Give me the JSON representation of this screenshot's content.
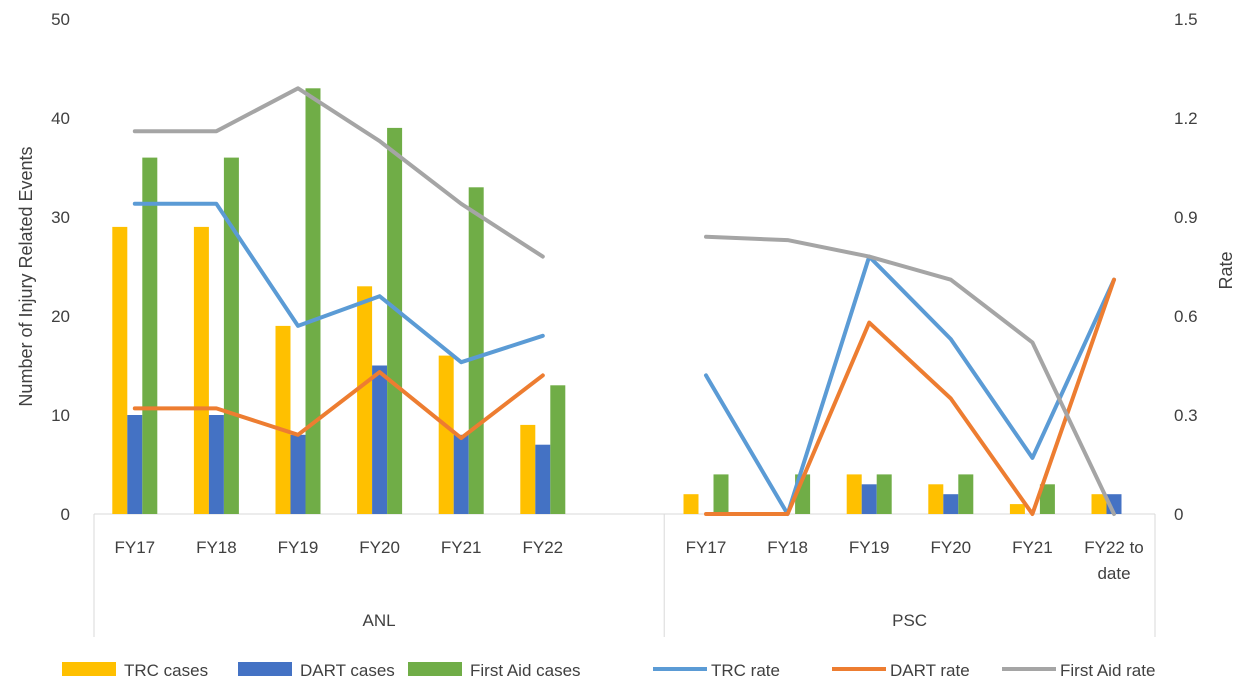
{
  "chart_data": {
    "type": "bar",
    "subtype": "combo bar + line, dual axis",
    "groups": [
      {
        "label": "ANL",
        "categories": [
          "FY17",
          "FY18",
          "FY19",
          "FY20",
          "FY21",
          "FY22"
        ]
      },
      {
        "label": "PSC",
        "categories": [
          "FY17",
          "FY18",
          "FY19",
          "FY20",
          "FY21",
          "FY22 to date"
        ]
      }
    ],
    "bar_series": [
      {
        "name": "TRC cases",
        "color": "#FFC000",
        "values": [
          [
            29,
            29,
            19,
            23,
            16,
            9
          ],
          [
            2,
            0,
            4,
            3,
            1,
            2
          ]
        ]
      },
      {
        "name": "DART cases",
        "color": "#4472C4",
        "values": [
          [
            10,
            10,
            8,
            15,
            8,
            7
          ],
          [
            0,
            0,
            3,
            2,
            0,
            2
          ]
        ]
      },
      {
        "name": "First Aid cases",
        "color": "#70AD47",
        "values": [
          [
            36,
            36,
            43,
            39,
            33,
            13
          ],
          [
            4,
            4,
            4,
            4,
            3,
            0
          ]
        ]
      }
    ],
    "line_series": [
      {
        "name": "TRC rate",
        "color": "#5B9BD5",
        "values": [
          [
            0.94,
            0.94,
            0.57,
            0.66,
            0.46,
            0.54
          ],
          [
            0.42,
            0.0,
            0.78,
            0.53,
            0.17,
            0.71
          ]
        ]
      },
      {
        "name": "DART rate",
        "color": "#ED7D31",
        "values": [
          [
            0.32,
            0.32,
            0.24,
            0.43,
            0.23,
            0.42
          ],
          [
            0.0,
            0.0,
            0.58,
            0.35,
            0.0,
            0.71
          ]
        ]
      },
      {
        "name": "First Aid rate",
        "color": "#A5A5A5",
        "values": [
          [
            1.16,
            1.16,
            1.29,
            1.13,
            0.94,
            0.78
          ],
          [
            0.84,
            0.83,
            0.78,
            0.71,
            0.52,
            0.0
          ]
        ]
      }
    ],
    "ylabel": "Number of Injury Related Events",
    "y2label": "Rate",
    "ylim": [
      0,
      50
    ],
    "y2lim": [
      0,
      1.5
    ],
    "yticks": [
      "0",
      "10",
      "20",
      "30",
      "40",
      "50"
    ],
    "y2ticks": [
      "0",
      "0.3",
      "0.6",
      "0.9",
      "1.2",
      "1.5"
    ],
    "grid": false,
    "legend_position": "bottom"
  }
}
